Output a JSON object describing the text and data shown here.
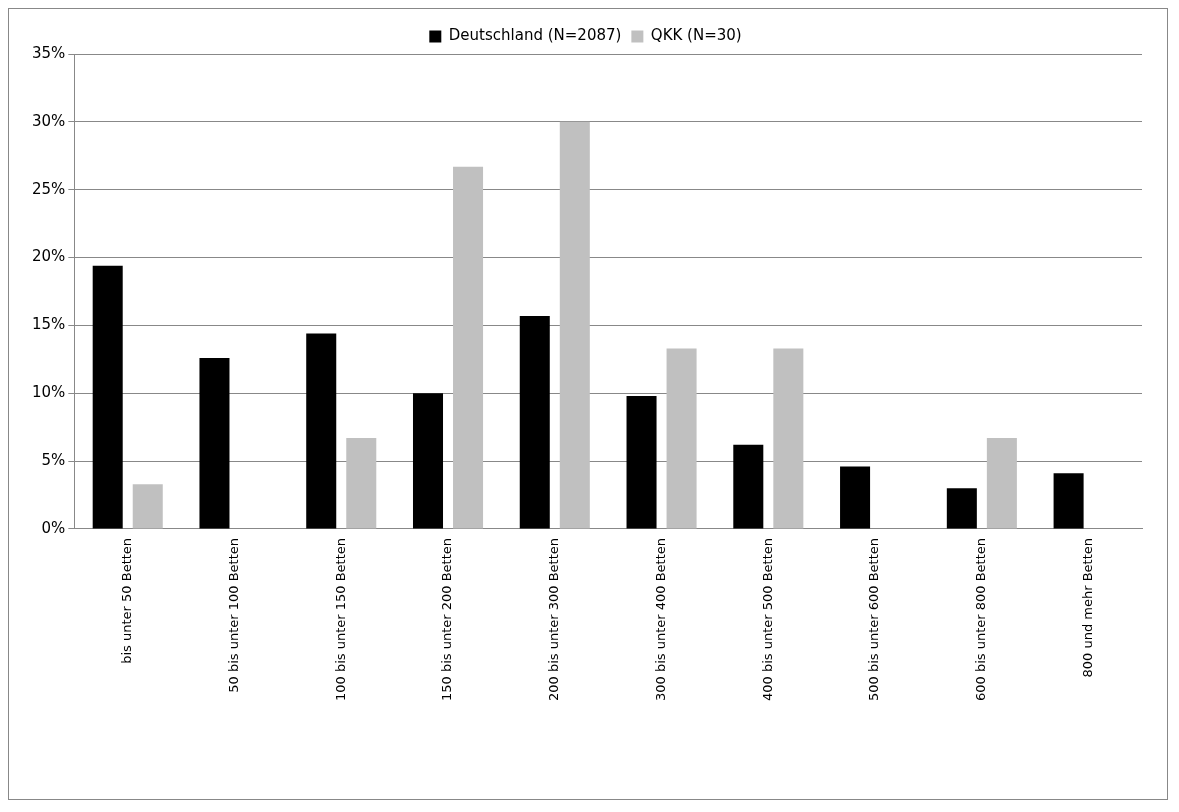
{
  "chart_data": {
    "type": "bar",
    "categories": [
      "bis unter 50 Betten",
      "50 bis unter 100 Betten",
      "100 bis unter 150 Betten",
      "150 bis unter 200 Betten",
      "200 bis unter 300 Betten",
      "300 bis unter 400 Betten",
      "400 bis unter 500 Betten",
      "500 bis unter 600 Betten",
      "600 bis unter 800 Betten",
      "800 und mehr Betten"
    ],
    "series": [
      {
        "name": "Deutschland (N=2087)",
        "color": "#000000",
        "values": [
          19.4,
          12.6,
          14.4,
          10.0,
          15.7,
          9.8,
          6.2,
          4.6,
          3.0,
          4.1
        ]
      },
      {
        "name": "QKK (N=30)",
        "color": "#c0c0c0",
        "values": [
          3.3,
          0,
          6.7,
          26.7,
          30.0,
          13.3,
          13.3,
          0,
          6.7,
          0
        ]
      }
    ],
    "ylim": [
      0,
      35
    ],
    "yticks": [
      {
        "value": 0,
        "label": "0%"
      },
      {
        "value": 5,
        "label": "5%"
      },
      {
        "value": 10,
        "label": "10%"
      },
      {
        "value": 15,
        "label": "15%"
      },
      {
        "value": 20,
        "label": "20%"
      },
      {
        "value": 25,
        "label": "25%"
      },
      {
        "value": 30,
        "label": "30%"
      },
      {
        "value": 35,
        "label": "35%"
      }
    ],
    "grid": "y",
    "legend": "top"
  }
}
